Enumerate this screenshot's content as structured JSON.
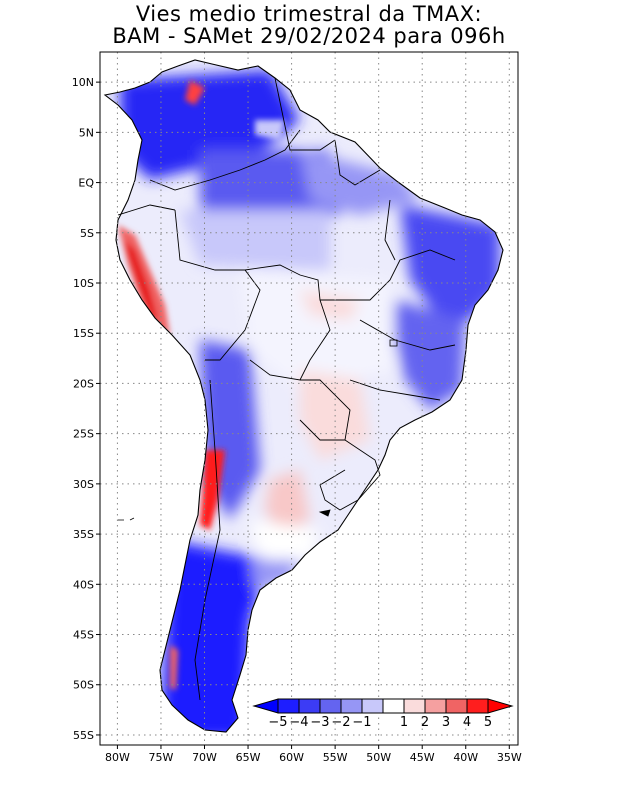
{
  "header": {
    "line1": "Vies medio trimestral da TMAX:",
    "line2": "BAM - SAMet 29/02/2024  para 096h"
  },
  "map": {
    "lon_range": [
      -82,
      -34
    ],
    "lat_range": [
      -56,
      13
    ],
    "lon_ticks": [
      {
        "value": -80,
        "label": "80W"
      },
      {
        "value": -75,
        "label": "75W"
      },
      {
        "value": -70,
        "label": "70W"
      },
      {
        "value": -65,
        "label": "65W"
      },
      {
        "value": -60,
        "label": "60W"
      },
      {
        "value": -55,
        "label": "55W"
      },
      {
        "value": -50,
        "label": "50W"
      },
      {
        "value": -45,
        "label": "45W"
      },
      {
        "value": -40,
        "label": "40W"
      },
      {
        "value": -35,
        "label": "35W"
      }
    ],
    "lat_ticks": [
      {
        "value": 10,
        "label": "10N"
      },
      {
        "value": 5,
        "label": "5N"
      },
      {
        "value": 0,
        "label": "EQ"
      },
      {
        "value": -5,
        "label": "5S"
      },
      {
        "value": -10,
        "label": "10S"
      },
      {
        "value": -15,
        "label": "15S"
      },
      {
        "value": -20,
        "label": "20S"
      },
      {
        "value": -25,
        "label": "25S"
      },
      {
        "value": -30,
        "label": "30S"
      },
      {
        "value": -35,
        "label": "35S"
      },
      {
        "value": -40,
        "label": "40S"
      },
      {
        "value": -45,
        "label": "45S"
      },
      {
        "value": -50,
        "label": "50S"
      },
      {
        "value": -55,
        "label": "55S"
      }
    ],
    "grid": "dotted",
    "continent": "South America",
    "colors": {
      "ocean": "#ffffff",
      "neutral": "#ffffff",
      "border": "#000000"
    }
  },
  "colorbar": {
    "labels": [
      "-5",
      "-4",
      "-3",
      "-2",
      "-1",
      "1",
      "2",
      "3",
      "4",
      "5"
    ],
    "bins": [
      {
        "color": "#1e1eff"
      },
      {
        "color": "#3c3cf5"
      },
      {
        "color": "#6464f0"
      },
      {
        "color": "#9696f5"
      },
      {
        "color": "#c8c8fa"
      },
      {
        "color": "#ffffff"
      },
      {
        "color": "#fadcdc"
      },
      {
        "color": "#f5a0a0"
      },
      {
        "color": "#f06464"
      },
      {
        "color": "#ff1e1e"
      }
    ],
    "low_color": "#0000ff",
    "high_color": "#ff0000",
    "units": ""
  }
}
